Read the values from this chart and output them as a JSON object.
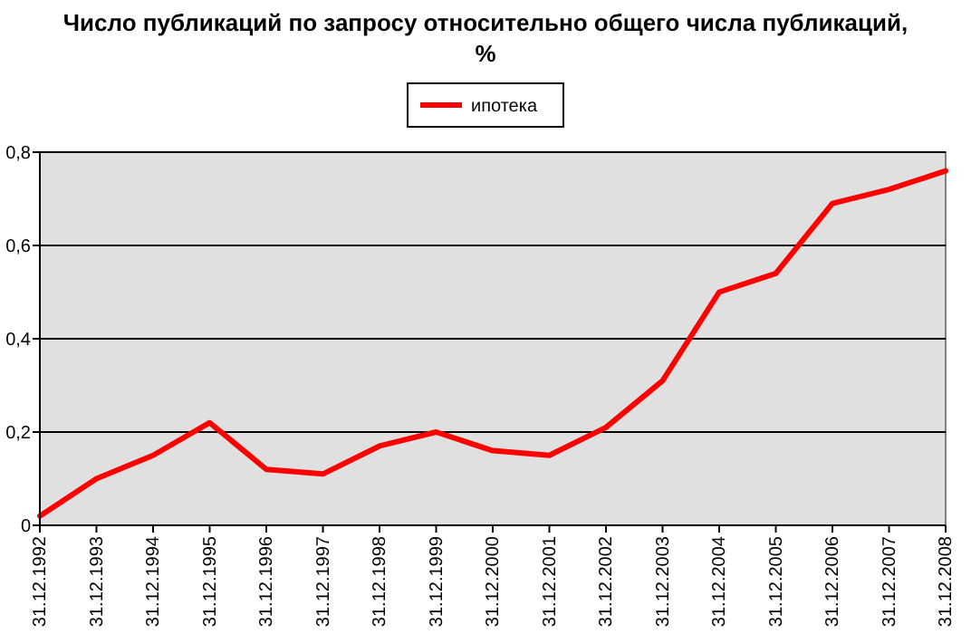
{
  "chart_data": {
    "type": "line",
    "title": "Число публикаций по запросу относительно общего числа публикаций, %",
    "categories": [
      "31.12.1992",
      "31.12.1993",
      "31.12.1994",
      "31.12.1995",
      "31.12.1996",
      "31.12.1997",
      "31.12.1998",
      "31.12.1999",
      "31.12.2000",
      "31.12.2001",
      "31.12.2002",
      "31.12.2003",
      "31.12.2004",
      "31.12.2005",
      "31.12.2006",
      "31.12.2007",
      "31.12.2008"
    ],
    "series": [
      {
        "name": "ипотека",
        "color": "#ff0000",
        "values": [
          0.02,
          0.1,
          0.15,
          0.22,
          0.12,
          0.11,
          0.17,
          0.2,
          0.16,
          0.15,
          0.21,
          0.31,
          0.5,
          0.54,
          0.69,
          0.72,
          0.76
        ]
      }
    ],
    "ylim": [
      0,
      0.8
    ],
    "yticks": [
      {
        "value": 0,
        "label": "0"
      },
      {
        "value": 0.2,
        "label": "0,2"
      },
      {
        "value": 0.4,
        "label": "0,4"
      },
      {
        "value": 0.6,
        "label": "0,6"
      },
      {
        "value": 0.8,
        "label": "0,8"
      }
    ],
    "grid": "y",
    "legend": "top",
    "marker": "none",
    "line_style": "solid"
  }
}
